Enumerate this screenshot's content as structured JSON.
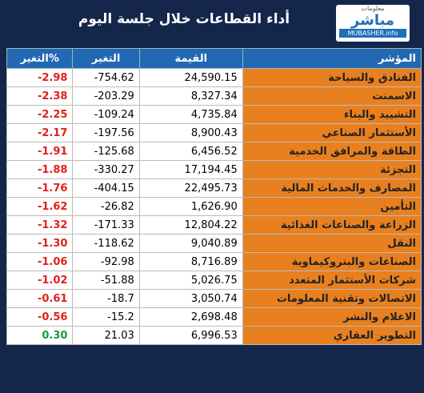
{
  "header": {
    "title": "أداء القطاعات خلال جلسة اليوم",
    "logo": {
      "top": "معلومات",
      "name": "مباشر",
      "sub": "MUBASHER.info"
    }
  },
  "table": {
    "columns": [
      "التغير%",
      "التغير",
      "القيمة",
      "المؤشر"
    ],
    "rows": [
      [
        "-2.98",
        "-754.62",
        "24,590.15",
        "الفنادق والسياحة"
      ],
      [
        "-2.38",
        "-203.29",
        "8,327.34",
        "الاسمنت"
      ],
      [
        "-2.25",
        "-109.24",
        "4,735.84",
        "التشييد والبناء"
      ],
      [
        "-2.17",
        "-197.56",
        "8,900.43",
        "الأستثمار الصناعي"
      ],
      [
        "-1.91",
        "-125.68",
        "6,456.52",
        "الطاقة والمرافق الخدمية"
      ],
      [
        "-1.88",
        "-330.27",
        "17,194.45",
        "التجزئة"
      ],
      [
        "-1.76",
        "-404.15",
        "22,495.73",
        "المصارف والخدمات المالية"
      ],
      [
        "-1.62",
        "-26.82",
        "1,626.90",
        "التأمين"
      ],
      [
        "-1.32",
        "-171.33",
        "12,804.22",
        "الزراعة والصناعات الغذائية"
      ],
      [
        "-1.30",
        "-118.62",
        "9,040.89",
        "النقل"
      ],
      [
        "-1.06",
        "-92.98",
        "8,716.89",
        "الصناعات والبتروكيماوية"
      ],
      [
        "-1.02",
        "-51.88",
        "5,026.75",
        "شركات الأستثمار المتعدد"
      ],
      [
        "-0.61",
        "-18.7",
        "3,050.74",
        "الاتصالات وتقنية المعلومات"
      ],
      [
        "-0.56",
        "-15.2",
        "2,698.48",
        "الاعلام والنشر"
      ],
      [
        "0.30",
        "21.03",
        "6,996.53",
        "التطوير العقاري"
      ]
    ]
  }
}
